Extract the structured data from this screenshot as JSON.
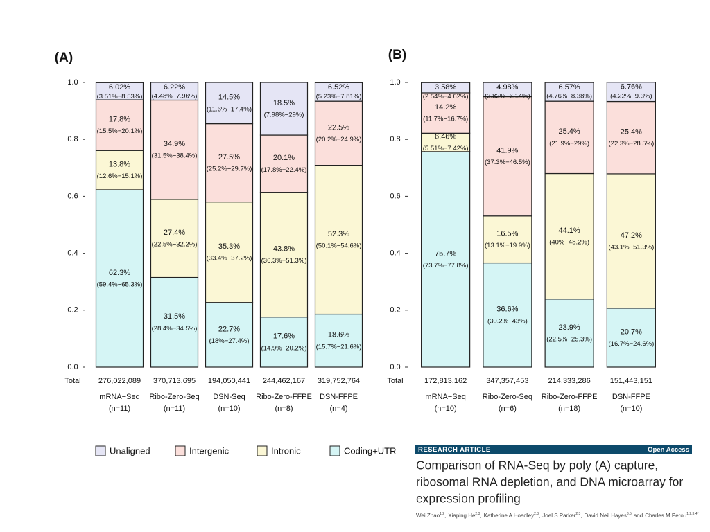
{
  "chart_data": [
    {
      "type": "bar",
      "stacked": true,
      "panel_label": "(A)",
      "categories": [
        "mRNA−Seq",
        "Ribo-Zero-Seq",
        "DSN-Seq",
        "Ribo-Zero-FFPE",
        "DSN-FFPE"
      ],
      "category_n": [
        "(n=11)",
        "(n=11)",
        "(n=10)",
        "(n=8)",
        "(n=4)"
      ],
      "totals_label": "Total",
      "totals": [
        {
          "value": 276022089,
          "label": "276,022,089"
        },
        {
          "value": 370713695,
          "label": "370,713,695"
        },
        {
          "value": 194050441,
          "label": "194,050,441"
        },
        {
          "value": 244462167,
          "label": "244,462,167"
        },
        {
          "value": 319752764,
          "label": "319,752,764"
        }
      ],
      "ylim": [
        0,
        1
      ],
      "yticks": [
        {
          "value": 0,
          "label": "0.0"
        },
        0.2,
        0.4,
        0.6,
        0.8,
        {
          "value": 1,
          "label": "1.0"
        }
      ],
      "legend": "bottom",
      "series": [
        {
          "name": "Coding+UTR",
          "color": "#d5f5f5",
          "values": [
            0.623,
            0.315,
            0.227,
            0.176,
            0.186
          ],
          "value_labels": [
            "62.3%",
            "31.5%",
            "22.7%",
            "17.6%",
            "18.6%"
          ],
          "interval_labels": [
            "(59.4%−65.3%)",
            "(28.4%−34.5%)",
            "(18%−27.4%)",
            "(14.9%−20.2%)",
            "(15.7%−21.6%)"
          ]
        },
        {
          "name": "Intronic",
          "color": "#fbf7d5",
          "values": [
            0.138,
            0.274,
            0.353,
            0.438,
            0.523
          ],
          "value_labels": [
            "13.8%",
            "27.4%",
            "35.3%",
            "43.8%",
            "52.3%"
          ],
          "interval_labels": [
            "(12.6%−15.1%)",
            "(22.5%−32.2%)",
            "(33.4%−37.2%)",
            "(36.3%−51.3%)",
            "(50.1%−54.6%)"
          ]
        },
        {
          "name": "Intergenic",
          "color": "#fbdfdb",
          "values": [
            0.178,
            0.349,
            0.275,
            0.201,
            0.225
          ],
          "value_labels": [
            "17.8%",
            "34.9%",
            "27.5%",
            "20.1%",
            "22.5%"
          ],
          "interval_labels": [
            "(15.5%−20.1%)",
            "(31.5%−38.4%)",
            "(25.2%−29.7%)",
            "(17.8%−22.4%)",
            "(20.2%−24.9%)"
          ]
        },
        {
          "name": "Unaligned",
          "color": "#e5e5f5",
          "values": [
            0.0602,
            0.0622,
            0.145,
            0.185,
            0.0652
          ],
          "value_labels": [
            "6.02%",
            "6.22%",
            "14.5%",
            "18.5%",
            "6.52%"
          ],
          "interval_labels": [
            "(3.51%−8.53%)",
            "(4.48%−7.96%)",
            "(11.6%−17.4%)",
            "(7.98%−29%)",
            "(5.23%−7.81%)"
          ]
        }
      ]
    },
    {
      "type": "bar",
      "stacked": true,
      "panel_label": "(B)",
      "categories": [
        "mRNA−Seq",
        "Ribo-Zero-Seq",
        "Ribo-Zero-FFPE",
        "DSN-FFPE"
      ],
      "category_n": [
        "(n=10)",
        "(n=6)",
        "(n=18)",
        "(n=10)"
      ],
      "totals_label": "Total",
      "totals": [
        {
          "value": 172813162,
          "label": "172,813,162"
        },
        {
          "value": 347357453,
          "label": "347,357,453"
        },
        {
          "value": 214333286,
          "label": "214,333,286"
        },
        {
          "value": 151443151,
          "label": "151,443,151"
        }
      ],
      "ylim": [
        0,
        1
      ],
      "yticks": [
        {
          "value": 0,
          "label": "0.0"
        },
        0.2,
        0.4,
        0.6,
        0.8,
        {
          "value": 1,
          "label": "1.0"
        }
      ],
      "series": [
        {
          "color": "#d5f5f5",
          "values": [
            0.757,
            0.366,
            0.239,
            0.207
          ],
          "value_labels": [
            "75.7%",
            "36.6%",
            "23.9%",
            "20.7%"
          ],
          "interval_labels": [
            "(73.7%−77.8%)",
            "(30.2%−43%)",
            "(22.5%−25.3%)",
            "(16.7%−24.6%)"
          ]
        },
        {
          "color": "#fbf7d5",
          "values": [
            0.0646,
            0.165,
            0.441,
            0.472
          ],
          "value_labels": [
            "6.46%",
            "16.5%",
            "44.1%",
            "47.2%"
          ],
          "interval_labels": [
            "(5.51%−7.42%)",
            "(13.1%−19.9%)",
            "(40%−48.2%)",
            "(43.1%−51.3%)"
          ]
        },
        {
          "color": "#fbdfdb",
          "values": [
            0.142,
            0.419,
            0.254,
            0.254
          ],
          "value_labels": [
            "14.2%",
            "41.9%",
            "25.4%",
            "25.4%"
          ],
          "interval_labels": [
            "(11.7%−16.7%)",
            "(37.3%−46.5%)",
            "(21.9%−29%)",
            "(22.3%−28.5%)"
          ]
        },
        {
          "color": "#e5e5f5",
          "values": [
            0.0358,
            0.0498,
            0.0657,
            0.0676
          ],
          "value_labels": [
            "3.58%",
            "4.98%",
            "6.57%",
            "6.76%"
          ],
          "interval_labels": [
            "(2.54%−4.62%)",
            "(3.83%−6.14%)",
            "(4.76%−8.38%)",
            "(4.22%−9.3%)"
          ]
        }
      ]
    }
  ],
  "paper": {
    "label": "RESEARCH ARTICLE",
    "access": "Open Access",
    "title_lines": [
      "Comparison of RNA-Seq by poly (A) capture,",
      "ribosomal RNA depletion, and DNA microarray for",
      "expression profiling"
    ],
    "authors": [
      {
        "name": "Wei Zhao",
        "sup": "1,2"
      },
      {
        "name": "Xiaping He",
        "sup": "2,3"
      },
      {
        "name": "Katherine A Hoadley",
        "sup": "2,3"
      },
      {
        "name": "Joel S Parker",
        "sup": "2,3"
      },
      {
        "name": "David Neil Hayes",
        "sup": "3,5"
      },
      {
        "name": "Charles M Perou",
        "sup": "1,2,3,4*"
      }
    ],
    "conjunction": "and"
  }
}
